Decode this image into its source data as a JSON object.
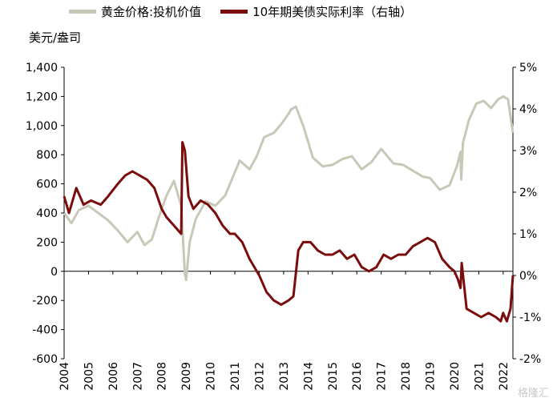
{
  "legend": {
    "gold_label": "黄金价格:投机价值",
    "yield_label": "10年期美债实际利率（右轴）"
  },
  "unit_label": "美元/盎司",
  "watermark": "格隆汇",
  "colors": {
    "gold": "#c8c8b8",
    "yield": "#7a0c0c",
    "axis": "#000000"
  },
  "chart_data": {
    "type": "line",
    "title": "",
    "xlabel": "",
    "ylabel": "美元/盎司",
    "x_ticks": [
      "2004",
      "2005",
      "2006",
      "2007",
      "2008",
      "2009",
      "2010",
      "2011",
      "2012",
      "2013",
      "2014",
      "2015",
      "2016",
      "2017",
      "2018",
      "2019",
      "2020",
      "2021",
      "2022"
    ],
    "xlim": [
      2004,
      2022.4
    ],
    "ylim_left": [
      -600,
      1400
    ],
    "y_ticks_left": [
      -600,
      -400,
      -200,
      0,
      200,
      400,
      600,
      800,
      1000,
      1200,
      1400
    ],
    "y_tick_labels_left": [
      "-600",
      "-400",
      "-200",
      "0",
      "200",
      "400",
      "600",
      "800",
      "1,000",
      "1,200",
      "1,400"
    ],
    "ylim_right": [
      -2,
      5
    ],
    "y_ticks_right": [
      -2,
      -1,
      0,
      1,
      2,
      3,
      4,
      5
    ],
    "y_tick_labels_right": [
      "-2%",
      "-1%",
      "0%",
      "1%",
      "2%",
      "3%",
      "4%",
      "5%"
    ],
    "series": [
      {
        "name": "黄金价格:投机价值",
        "axis": "left",
        "x": [
          2004.0,
          2004.3,
          2004.6,
          2005.0,
          2005.4,
          2005.8,
          2006.2,
          2006.6,
          2007.0,
          2007.3,
          2007.6,
          2007.9,
          2008.2,
          2008.5,
          2008.8,
          2008.95,
          2009.0,
          2009.15,
          2009.4,
          2009.8,
          2010.2,
          2010.6,
          2010.9,
          2011.2,
          2011.6,
          2011.9,
          2012.2,
          2012.6,
          2012.9,
          2013.2,
          2013.3,
          2013.5,
          2013.8,
          2014.2,
          2014.6,
          2015.0,
          2015.4,
          2015.8,
          2016.2,
          2016.6,
          2017.0,
          2017.5,
          2017.9,
          2018.3,
          2018.7,
          2019.0,
          2019.4,
          2019.8,
          2020.1,
          2020.25,
          2020.28,
          2020.35,
          2020.6,
          2020.9,
          2021.2,
          2021.5,
          2021.8,
          2022.0,
          2022.2,
          2022.4
        ],
        "values": [
          400,
          330,
          420,
          450,
          400,
          350,
          280,
          200,
          270,
          180,
          220,
          380,
          520,
          620,
          450,
          -20,
          -60,
          200,
          360,
          480,
          450,
          520,
          640,
          760,
          700,
          790,
          920,
          950,
          1010,
          1080,
          1110,
          1130,
          1000,
          780,
          720,
          730,
          770,
          790,
          700,
          750,
          840,
          740,
          730,
          690,
          650,
          640,
          560,
          590,
          720,
          820,
          630,
          880,
          1040,
          1150,
          1170,
          1120,
          1180,
          1200,
          1180,
          950
        ]
      },
      {
        "name": "10年期美债实际利率（右轴）",
        "axis": "right",
        "x": [
          2004.0,
          2004.2,
          2004.5,
          2004.8,
          2005.1,
          2005.5,
          2005.8,
          2006.2,
          2006.5,
          2006.8,
          2007.1,
          2007.4,
          2007.7,
          2008.0,
          2008.2,
          2008.5,
          2008.8,
          2008.85,
          2008.95,
          2009.1,
          2009.3,
          2009.6,
          2009.9,
          2010.2,
          2010.5,
          2010.8,
          2011.0,
          2011.3,
          2011.6,
          2011.8,
          2012.0,
          2012.3,
          2012.6,
          2012.9,
          2013.2,
          2013.4,
          2013.6,
          2013.8,
          2014.1,
          2014.4,
          2014.7,
          2015.0,
          2015.3,
          2015.6,
          2015.9,
          2016.2,
          2016.5,
          2016.8,
          2017.1,
          2017.4,
          2017.7,
          2018.0,
          2018.3,
          2018.6,
          2018.9,
          2019.2,
          2019.5,
          2019.8,
          2020.0,
          2020.15,
          2020.25,
          2020.3,
          2020.5,
          2020.8,
          2021.1,
          2021.4,
          2021.7,
          2021.9,
          2022.0,
          2022.15,
          2022.3,
          2022.4
        ],
        "values": [
          1.9,
          1.5,
          2.1,
          1.7,
          1.8,
          1.7,
          1.9,
          2.2,
          2.4,
          2.5,
          2.4,
          2.3,
          2.1,
          1.6,
          1.4,
          1.2,
          1.0,
          3.2,
          3.0,
          1.9,
          1.6,
          1.8,
          1.7,
          1.5,
          1.2,
          1.0,
          1.0,
          0.8,
          0.4,
          0.2,
          0.0,
          -0.4,
          -0.6,
          -0.7,
          -0.6,
          -0.5,
          0.6,
          0.8,
          0.8,
          0.6,
          0.5,
          0.5,
          0.6,
          0.4,
          0.5,
          0.2,
          0.1,
          0.2,
          0.5,
          0.4,
          0.5,
          0.5,
          0.7,
          0.8,
          0.9,
          0.8,
          0.4,
          0.2,
          0.1,
          -0.1,
          -0.3,
          0.3,
          -0.8,
          -0.9,
          -1.0,
          -0.9,
          -1.0,
          -1.1,
          -0.9,
          -1.1,
          -0.8,
          0.0
        ]
      }
    ]
  }
}
